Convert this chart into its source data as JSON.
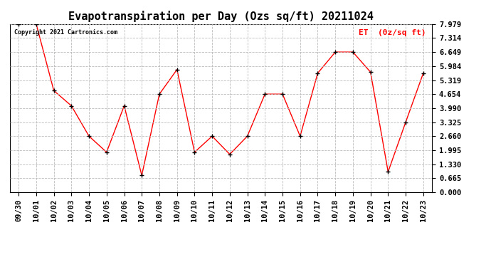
{
  "title": "Evapotranspiration per Day (Ozs sq/ft) 20211024",
  "legend_label": "ET  (0z/sq ft)",
  "copyright": "Copyright 2021 Cartronics.com",
  "x_labels": [
    "09/30",
    "10/01",
    "10/02",
    "10/03",
    "10/04",
    "10/05",
    "10/06",
    "10/07",
    "10/08",
    "10/09",
    "10/10",
    "10/11",
    "10/12",
    "10/13",
    "10/14",
    "10/15",
    "10/16",
    "10/17",
    "10/18",
    "10/19",
    "10/20",
    "10/21",
    "10/22",
    "10/23"
  ],
  "y_values": [
    7.979,
    7.979,
    4.82,
    4.1,
    2.66,
    1.9,
    4.1,
    0.8,
    4.654,
    5.819,
    1.9,
    2.66,
    1.8,
    2.66,
    4.654,
    4.654,
    2.66,
    5.65,
    6.649,
    6.649,
    5.7,
    0.97,
    3.325,
    5.65
  ],
  "ylim": [
    0.0,
    7.979
  ],
  "yticks": [
    0.0,
    0.665,
    1.33,
    1.995,
    2.66,
    3.325,
    3.99,
    4.654,
    5.319,
    5.984,
    6.649,
    7.314,
    7.979
  ],
  "line_color": "red",
  "marker_color": "black",
  "marker_style": "+",
  "grid_color": "#bbbbbb",
  "background_color": "white",
  "title_fontsize": 11,
  "tick_fontsize": 7.5,
  "legend_color": "red"
}
